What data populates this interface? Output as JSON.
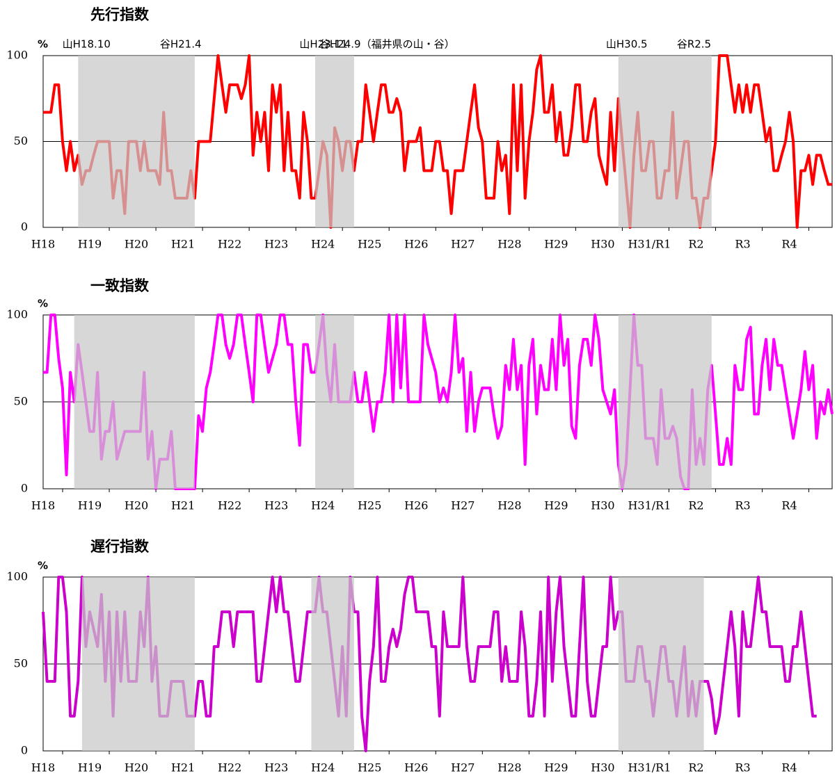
{
  "chart_data": [
    {
      "type": "line",
      "title": "先行指数",
      "ylabel": "%",
      "color": "#ff0000",
      "annotations": [
        "山H18.10",
        "谷H21.4",
        "山H23.11",
        "谷H24.9（福井県の山・谷）",
        "山H30.5",
        "谷R2.5"
      ],
      "shaded": [
        [
          9,
          39
        ],
        [
          70,
          80
        ],
        [
          148,
          172
        ]
      ],
      "ylim": [
        0,
        100
      ],
      "yticks": [
        0,
        50,
        100
      ],
      "grid": true,
      "categories": [
        "H18",
        null,
        null,
        null,
        null,
        null,
        null,
        null,
        null,
        null,
        null,
        null,
        "H19",
        null,
        null,
        null,
        null,
        null,
        null,
        null,
        null,
        null,
        null,
        null,
        "H20",
        null,
        null,
        null,
        null,
        null,
        null,
        null,
        null,
        null,
        null,
        null,
        "H21",
        null,
        null,
        null,
        null,
        null,
        null,
        null,
        null,
        null,
        null,
        null,
        "H22",
        null,
        null,
        null,
        null,
        null,
        null,
        null,
        null,
        null,
        null,
        null,
        "H23",
        null,
        null,
        null,
        null,
        null,
        null,
        null,
        null,
        null,
        null,
        null,
        "H24",
        null,
        null,
        null,
        null,
        null,
        null,
        null,
        null,
        null,
        null,
        null,
        "H25",
        null,
        null,
        null,
        null,
        null,
        null,
        null,
        null,
        null,
        null,
        null,
        "H26",
        null,
        null,
        null,
        null,
        null,
        null,
        null,
        null,
        null,
        null,
        null,
        "H27",
        null,
        null,
        null,
        null,
        null,
        null,
        null,
        null,
        null,
        null,
        null,
        "H28",
        null,
        null,
        null,
        null,
        null,
        null,
        null,
        null,
        null,
        null,
        null,
        "H29",
        null,
        null,
        null,
        null,
        null,
        null,
        null,
        null,
        null,
        null,
        null,
        "H30",
        null,
        null,
        null,
        null,
        null,
        null,
        null,
        null,
        null,
        null,
        null,
        "H31/R1",
        null,
        null,
        null,
        null,
        null,
        null,
        null,
        null,
        null,
        null,
        null,
        "R2",
        null,
        null,
        null,
        null,
        null,
        null,
        null,
        null,
        null,
        null,
        null,
        "R3",
        null,
        null,
        null,
        null,
        null,
        null,
        null,
        null,
        null,
        null,
        null,
        "R4",
        null,
        null,
        null,
        null,
        null,
        null,
        null,
        null,
        null,
        null,
        null
      ],
      "values": [
        67,
        67,
        67,
        83,
        83,
        50,
        33,
        50,
        33,
        42,
        25,
        33,
        33,
        42,
        50,
        50,
        50,
        50,
        17,
        33,
        33,
        8,
        50,
        50,
        50,
        33,
        50,
        33,
        33,
        33,
        25,
        67,
        33,
        33,
        17,
        17,
        17,
        17,
        33,
        17,
        50,
        50,
        50,
        50,
        75,
        100,
        83,
        67,
        83,
        83,
        83,
        75,
        83,
        100,
        42,
        67,
        50,
        67,
        33,
        83,
        67,
        83,
        33,
        67,
        33,
        33,
        17,
        67,
        50,
        17,
        17,
        33,
        50,
        42,
        0,
        58,
        50,
        33,
        50,
        50,
        33,
        50,
        50,
        83,
        67,
        50,
        67,
        83,
        83,
        67,
        67,
        75,
        67,
        33,
        50,
        50,
        50,
        58,
        33,
        33,
        33,
        50,
        50,
        33,
        33,
        8,
        33,
        33,
        33,
        50,
        67,
        83,
        58,
        50,
        17,
        17,
        17,
        50,
        33,
        42,
        8,
        83,
        33,
        83,
        17,
        50,
        67,
        92,
        100,
        67,
        67,
        83,
        50,
        67,
        42,
        42,
        58,
        83,
        83,
        50,
        50,
        67,
        75,
        42,
        33,
        25,
        67,
        33,
        75,
        50,
        25,
        0,
        42,
        67,
        33,
        33,
        50,
        50,
        17,
        17,
        33,
        33,
        67,
        17,
        33,
        50,
        50,
        17,
        17,
        0,
        17,
        17,
        33,
        50,
        100,
        100,
        100,
        83,
        67,
        83,
        67,
        83,
        67,
        83,
        83,
        67,
        50,
        58,
        33,
        33,
        42,
        50,
        67,
        50,
        0,
        33,
        33,
        42,
        25,
        42,
        42,
        33,
        25,
        25
      ]
    },
    {
      "type": "line",
      "title": "一致指数",
      "ylabel": "%",
      "color": "#ff00ff",
      "shaded": [
        [
          8,
          39
        ],
        [
          70,
          80
        ],
        [
          148,
          172
        ]
      ],
      "ylim": [
        0,
        100
      ],
      "yticks": [
        0,
        50,
        100
      ],
      "grid": true,
      "categories": [
        "H18",
        null,
        null,
        null,
        null,
        null,
        null,
        null,
        null,
        null,
        null,
        null,
        "H19",
        null,
        null,
        null,
        null,
        null,
        null,
        null,
        null,
        null,
        null,
        null,
        "H20",
        null,
        null,
        null,
        null,
        null,
        null,
        null,
        null,
        null,
        null,
        null,
        "H21",
        null,
        null,
        null,
        null,
        null,
        null,
        null,
        null,
        null,
        null,
        null,
        "H22",
        null,
        null,
        null,
        null,
        null,
        null,
        null,
        null,
        null,
        null,
        null,
        "H23",
        null,
        null,
        null,
        null,
        null,
        null,
        null,
        null,
        null,
        null,
        null,
        "H24",
        null,
        null,
        null,
        null,
        null,
        null,
        null,
        null,
        null,
        null,
        null,
        "H25",
        null,
        null,
        null,
        null,
        null,
        null,
        null,
        null,
        null,
        null,
        null,
        "H26",
        null,
        null,
        null,
        null,
        null,
        null,
        null,
        null,
        null,
        null,
        null,
        "H27",
        null,
        null,
        null,
        null,
        null,
        null,
        null,
        null,
        null,
        null,
        null,
        "H28",
        null,
        null,
        null,
        null,
        null,
        null,
        null,
        null,
        null,
        null,
        null,
        "H29",
        null,
        null,
        null,
        null,
        null,
        null,
        null,
        null,
        null,
        null,
        null,
        "H30",
        null,
        null,
        null,
        null,
        null,
        null,
        null,
        null,
        null,
        null,
        null,
        "H31/R1",
        null,
        null,
        null,
        null,
        null,
        null,
        null,
        null,
        null,
        null,
        null,
        "R2",
        null,
        null,
        null,
        null,
        null,
        null,
        null,
        null,
        null,
        null,
        null,
        "R3",
        null,
        null,
        null,
        null,
        null,
        null,
        null,
        null,
        null,
        null,
        null,
        "R4",
        null,
        null,
        null,
        null,
        null,
        null,
        null,
        null,
        null,
        null,
        null
      ],
      "values": [
        67,
        67,
        100,
        100,
        75,
        58,
        8,
        67,
        50,
        83,
        67,
        50,
        33,
        33,
        67,
        17,
        33,
        33,
        50,
        17,
        25,
        33,
        33,
        33,
        33,
        33,
        67,
        17,
        33,
        0,
        17,
        17,
        17,
        33,
        0,
        0,
        0,
        0,
        0,
        0,
        42,
        33,
        58,
        67,
        83,
        100,
        100,
        83,
        75,
        83,
        100,
        100,
        83,
        67,
        50,
        100,
        100,
        83,
        67,
        75,
        83,
        100,
        100,
        83,
        83,
        50,
        25,
        83,
        83,
        67,
        67,
        83,
        100,
        67,
        50,
        83,
        50,
        50,
        50,
        50,
        67,
        50,
        50,
        67,
        50,
        33,
        50,
        50,
        67,
        100,
        50,
        100,
        58,
        100,
        50,
        50,
        50,
        50,
        100,
        83,
        75,
        67,
        50,
        58,
        50,
        67,
        100,
        67,
        75,
        33,
        67,
        33,
        50,
        58,
        58,
        58,
        42,
        29,
        36,
        71,
        57,
        86,
        57,
        71,
        14,
        71,
        86,
        43,
        71,
        57,
        57,
        86,
        57,
        100,
        71,
        86,
        36,
        29,
        71,
        86,
        86,
        71,
        100,
        86,
        57,
        50,
        43,
        57,
        14,
        0,
        14,
        57,
        100,
        71,
        71,
        29,
        29,
        29,
        14,
        57,
        29,
        29,
        36,
        29,
        7,
        0,
        0,
        57,
        14,
        29,
        14,
        57,
        71,
        43,
        14,
        14,
        29,
        14,
        71,
        57,
        57,
        86,
        93,
        43,
        43,
        71,
        86,
        57,
        86,
        71,
        71,
        57,
        43,
        29,
        43,
        57,
        79,
        57,
        71,
        29,
        50,
        43,
        57,
        43
      ]
    },
    {
      "type": "line",
      "title": "遅行指数",
      "ylabel": "%",
      "color": "#cc00cc",
      "shaded": [
        [
          10,
          39
        ],
        [
          69,
          80
        ],
        [
          148,
          170
        ]
      ],
      "ylim": [
        0,
        100
      ],
      "yticks": [
        0,
        50,
        100
      ],
      "grid": true,
      "categories": [
        "H18",
        null,
        null,
        null,
        null,
        null,
        null,
        null,
        null,
        null,
        null,
        null,
        "H19",
        null,
        null,
        null,
        null,
        null,
        null,
        null,
        null,
        null,
        null,
        null,
        "H20",
        null,
        null,
        null,
        null,
        null,
        null,
        null,
        null,
        null,
        null,
        null,
        "H21",
        null,
        null,
        null,
        null,
        null,
        null,
        null,
        null,
        null,
        null,
        null,
        "H22",
        null,
        null,
        null,
        null,
        null,
        null,
        null,
        null,
        null,
        null,
        null,
        "H23",
        null,
        null,
        null,
        null,
        null,
        null,
        null,
        null,
        null,
        null,
        null,
        "H24",
        null,
        null,
        null,
        null,
        null,
        null,
        null,
        null,
        null,
        null,
        null,
        "H25",
        null,
        null,
        null,
        null,
        null,
        null,
        null,
        null,
        null,
        null,
        null,
        "H26",
        null,
        null,
        null,
        null,
        null,
        null,
        null,
        null,
        null,
        null,
        null,
        "H27",
        null,
        null,
        null,
        null,
        null,
        null,
        null,
        null,
        null,
        null,
        null,
        "H28",
        null,
        null,
        null,
        null,
        null,
        null,
        null,
        null,
        null,
        null,
        null,
        "H29",
        null,
        null,
        null,
        null,
        null,
        null,
        null,
        null,
        null,
        null,
        null,
        "H30",
        null,
        null,
        null,
        null,
        null,
        null,
        null,
        null,
        null,
        null,
        null,
        "H31/R1",
        null,
        null,
        null,
        null,
        null,
        null,
        null,
        null,
        null,
        null,
        null,
        "R2",
        null,
        null,
        null,
        null,
        null,
        null,
        null,
        null,
        null,
        null,
        null,
        "R3",
        null,
        null,
        null,
        null,
        null,
        null,
        null,
        null,
        null,
        null,
        null,
        "R4",
        null,
        null,
        null,
        null,
        null,
        null,
        null,
        null,
        null,
        null,
        null
      ],
      "values": [
        80,
        40,
        40,
        40,
        100,
        100,
        80,
        20,
        20,
        40,
        100,
        60,
        80,
        70,
        60,
        90,
        40,
        80,
        20,
        80,
        40,
        80,
        40,
        40,
        40,
        80,
        60,
        100,
        40,
        60,
        20,
        20,
        20,
        40,
        40,
        40,
        40,
        20,
        20,
        20,
        40,
        40,
        20,
        20,
        60,
        60,
        80,
        80,
        80,
        60,
        80,
        80,
        80,
        80,
        80,
        40,
        40,
        60,
        80,
        100,
        80,
        100,
        80,
        80,
        60,
        40,
        40,
        60,
        80,
        80,
        80,
        100,
        80,
        80,
        60,
        40,
        20,
        60,
        20,
        100,
        80,
        80,
        20,
        0,
        40,
        60,
        100,
        40,
        40,
        60,
        70,
        60,
        70,
        90,
        100,
        100,
        80,
        80,
        80,
        80,
        60,
        60,
        20,
        80,
        60,
        60,
        60,
        60,
        100,
        60,
        40,
        40,
        60,
        60,
        60,
        60,
        80,
        80,
        40,
        60,
        40,
        40,
        40,
        80,
        60,
        20,
        20,
        40,
        80,
        20,
        100,
        40,
        80,
        100,
        60,
        40,
        20,
        20,
        60,
        100,
        40,
        20,
        20,
        40,
        60,
        60,
        100,
        70,
        80,
        80,
        40,
        40,
        40,
        60,
        60,
        40,
        40,
        20,
        40,
        60,
        60,
        40,
        40,
        20,
        40,
        60,
        20,
        40,
        20,
        40,
        40,
        40,
        30,
        10,
        20,
        40,
        60,
        80,
        60,
        20,
        80,
        60,
        60,
        80,
        100,
        80,
        80,
        60,
        60,
        60,
        60,
        40,
        40,
        60,
        60,
        80,
        60,
        40,
        20,
        20,
        null,
        null,
        null,
        null
      ]
    }
  ]
}
